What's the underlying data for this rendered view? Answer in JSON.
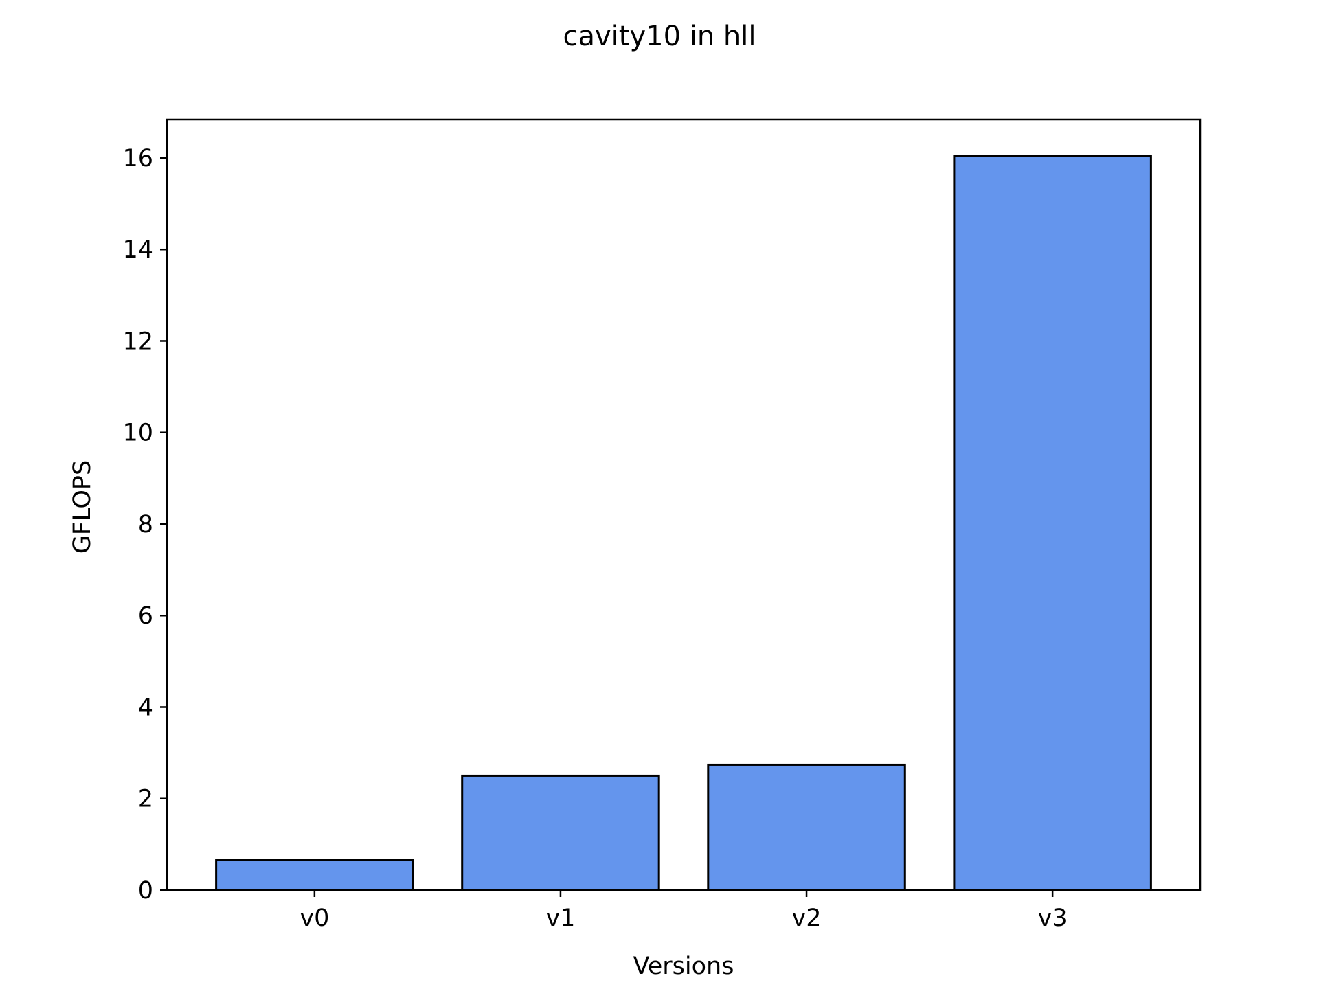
{
  "chart_data": {
    "type": "bar",
    "title": "cavity10 in hll",
    "xlabel": "Versions",
    "ylabel": "GFLOPS",
    "categories": [
      "v0",
      "v1",
      "v2",
      "v3"
    ],
    "values": [
      0.66,
      2.5,
      2.74,
      16.04
    ],
    "ylim": [
      0,
      16.84
    ],
    "yticks": [
      0,
      2,
      4,
      6,
      8,
      10,
      12,
      14,
      16
    ],
    "grid": false,
    "legend": false,
    "colors": {
      "bar_fill": "#6495ED",
      "bar_edge": "#000000",
      "axis": "#000000",
      "background": "#FFFFFF"
    }
  }
}
